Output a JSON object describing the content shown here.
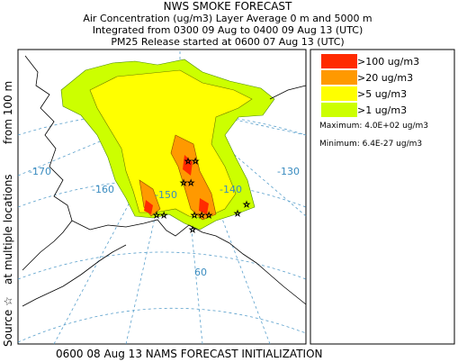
{
  "header": {
    "title": "NWS SMOKE FORECAST",
    "lines": [
      "Air Concentration (ug/m3) Layer Average    0 m and  5000 m",
      "Integrated from 0300 09 Aug to 0400 09 Aug 13 (UTC)",
      "PM25 Release started at 0600 07 Aug 13 (UTC)"
    ]
  },
  "side_label": [
    "Source ☆",
    "at multiple locations",
    "from   100 m"
  ],
  "footer": "0600 08 Aug 13 NAMS FORECAST INITIALIZATION",
  "legend": {
    "items": [
      {
        "label": ">100 ug/m3",
        "color": "#ff2a00"
      },
      {
        "label": ">20 ug/m3",
        "color": "#ff9900"
      },
      {
        "label": ">5 ug/m3",
        "color": "#ffff00"
      },
      {
        "label": ">1 ug/m3",
        "color": "#ccff00"
      }
    ],
    "maximum": "Maximum: 4.0E+02 ug/m3",
    "minimum": "Minimum: 6.4E-27 ug/m3"
  },
  "map": {
    "grid_labels": [
      "-170",
      "-160",
      "-150",
      "-140",
      "-130",
      "60"
    ]
  }
}
